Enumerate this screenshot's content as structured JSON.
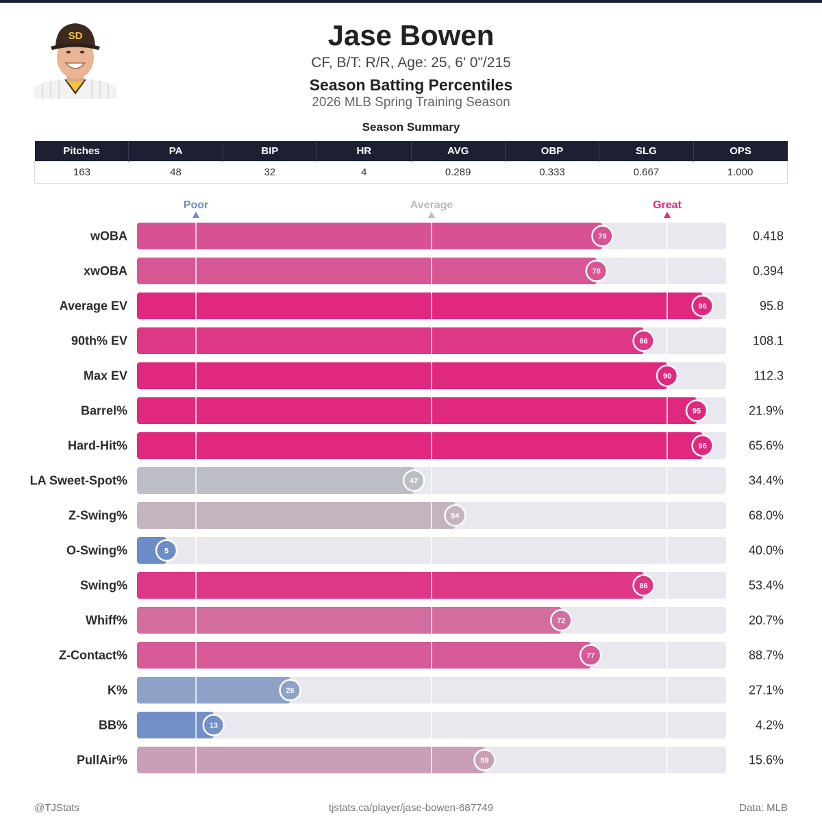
{
  "header": {
    "name": "Jase Bowen",
    "bio": "CF, B/T: R/R, Age: 25, 6' 0\"/215",
    "heading": "Season Batting Percentiles",
    "season": "2026 MLB Spring Training Season",
    "summary_title": "Season Summary"
  },
  "summary": {
    "columns": [
      "Pitches",
      "PA",
      "BIP",
      "HR",
      "AVG",
      "OBP",
      "SLG",
      "OPS"
    ],
    "values": [
      "163",
      "48",
      "32",
      "4",
      "0.289",
      "0.333",
      "0.667",
      "1.000"
    ]
  },
  "chart_data": {
    "type": "bar",
    "orientation": "horizontal",
    "title": "Season Batting Percentiles",
    "xlim": [
      0,
      100
    ],
    "markers": [
      {
        "label": "Poor",
        "value": 10,
        "color": "#6b8cc7"
      },
      {
        "label": "Average",
        "value": 50,
        "color": "#bbbbbb"
      },
      {
        "label": "Great",
        "value": 90,
        "color": "#e0287f"
      }
    ],
    "categories": [
      "wOBA",
      "xwOBA",
      "Average EV",
      "90th% EV",
      "Max EV",
      "Barrel%",
      "Hard-Hit%",
      "LA Sweet-Spot%",
      "Z-Swing%",
      "O-Swing%",
      "Swing%",
      "Whiff%",
      "Z-Contact%",
      "K%",
      "BB%",
      "PullAir%"
    ],
    "percentiles": [
      79,
      78,
      96,
      86,
      90,
      95,
      96,
      47,
      54,
      5,
      86,
      72,
      77,
      26,
      13,
      59
    ],
    "stat_values": [
      "0.418",
      "0.394",
      "95.8",
      "108.1",
      "112.3",
      "21.9%",
      "65.6%",
      "34.4%",
      "68.0%",
      "40.0%",
      "53.4%",
      "20.7%",
      "88.7%",
      "27.1%",
      "4.2%",
      "15.6%"
    ]
  },
  "footer": {
    "handle": "@TJStats",
    "url": "tjstats.ca/player/jase-bowen-687749",
    "source": "Data: MLB"
  },
  "colors": {
    "header_bg": "#1d1f33",
    "poor": "#6b8cc7",
    "great": "#e0287f",
    "average": "#c2c2c6",
    "track": "#e8e8ee"
  }
}
